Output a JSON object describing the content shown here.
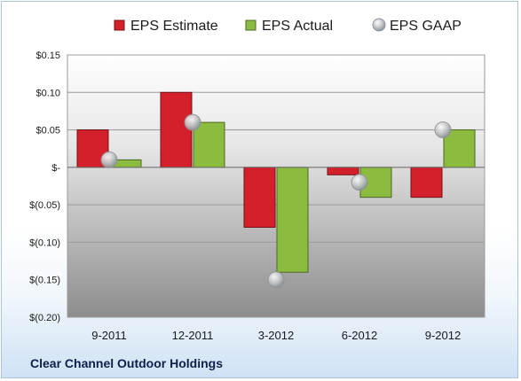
{
  "chart_data": {
    "type": "bar",
    "title": "",
    "xlabel": "",
    "ylabel": "",
    "categories": [
      "9-2011",
      "12-2011",
      "3-2012",
      "6-2012",
      "9-2012"
    ],
    "series": [
      {
        "name": "EPS Estimate",
        "kind": "bar",
        "color": "#d3202a",
        "values": [
          0.05,
          0.1,
          -0.08,
          -0.01,
          -0.04
        ]
      },
      {
        "name": "EPS Actual",
        "kind": "bar",
        "color": "#8cbc3f",
        "values": [
          0.01,
          0.06,
          -0.14,
          -0.04,
          0.05
        ]
      },
      {
        "name": "EPS GAAP",
        "kind": "marker",
        "color": "#b8bcc0",
        "values": [
          0.01,
          0.06,
          -0.15,
          -0.02,
          0.05
        ]
      }
    ],
    "ylim": [
      -0.2,
      0.15
    ],
    "yticks": [
      0.15,
      0.1,
      0.05,
      0,
      -0.05,
      -0.1,
      -0.15,
      -0.2
    ],
    "ytick_labels": [
      "$0.15",
      "$0.10",
      "$0.05",
      "$-",
      "$(0.05)",
      "$(0.10)",
      "$(0.15)",
      "$(0.20)"
    ],
    "grid": true,
    "legend_position": "top"
  },
  "footer": {
    "company": "Clear Channel Outdoor Holdings"
  }
}
